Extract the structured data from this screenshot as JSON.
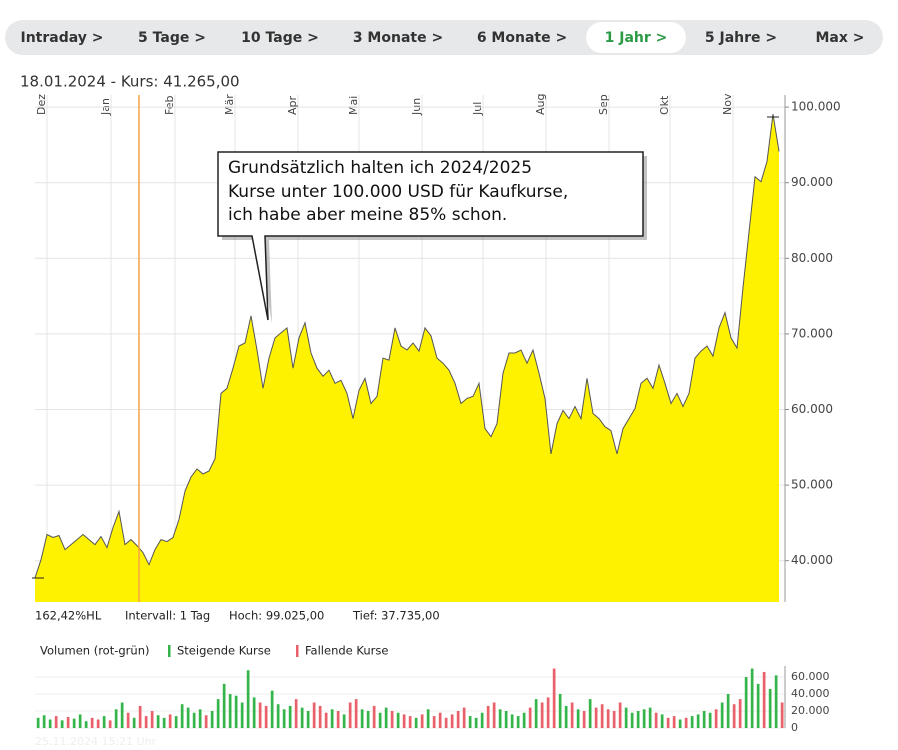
{
  "tabs": [
    "Intraday >",
    "5 Tage >",
    "10 Tage >",
    "3 Monate >",
    "6 Monate >",
    "1 Jahr >",
    "5 Jahre >",
    "Max >"
  ],
  "active_tab": 5,
  "header": "18.01.2024  -  Kurs: 41.265,00",
  "callout": [
    "Grundsätzlich halten ich 2024/2025",
    "Kurse unter 100.000 USD für Kaufkurse,",
    "ich habe aber meine 85% schon."
  ],
  "stats": [
    "162,42%HL",
    "Intervall: 1 Tag",
    "Hoch: 99.025,00",
    "Tief: 37.735,00"
  ],
  "timestamp": "25.11.2024 15:21 Uhr",
  "chart_data": [
    {
      "type": "area",
      "series": [
        {
          "color": "#fff200",
          "line_color": "#555555",
          "values": [
            37735,
            40130,
            43470,
            43070,
            43330,
            41470,
            42130,
            42800,
            43470,
            42800,
            42130,
            43200,
            41730,
            44400,
            46530,
            42130,
            42800,
            42000,
            41070,
            39470,
            41470,
            42800,
            42530,
            43070,
            45470,
            49200,
            51070,
            52130,
            51470,
            51870,
            53470,
            62130,
            62800,
            65470,
            68400,
            68800,
            72400,
            67870,
            62800,
            66800,
            69470,
            70130,
            70800,
            65470,
            69470,
            71470,
            67470,
            65470,
            64400,
            65200,
            63470,
            63870,
            62130,
            58800,
            62530,
            64130,
            60800,
            61730,
            66800,
            66530,
            70800,
            68400,
            67870,
            68800,
            67730,
            70800,
            69730,
            66800,
            66130,
            65200,
            63470,
            60800,
            61470,
            61730,
            63470,
            57470,
            56400,
            58130,
            64800,
            67470,
            67470,
            67870,
            66130,
            67870,
            64800,
            61470,
            54130,
            58130,
            59870,
            58800,
            60400,
            58800,
            64130,
            59470,
            58800,
            57730,
            57200,
            54130,
            57470,
            58800,
            60130,
            63470,
            64130,
            62800,
            65870,
            63470,
            60800,
            62130,
            60400,
            62130,
            66800,
            67730,
            68400,
            67070,
            70800,
            72800,
            69470,
            68130,
            76130,
            83470,
            90800,
            90130,
            92800,
            99070,
            94130
          ]
        }
      ],
      "xlim": [
        0,
        125
      ],
      "xticks": [
        {
          "value": 2,
          "label": "Dez"
        },
        {
          "value": 12.67,
          "label": "Jan"
        },
        {
          "value": 23.33,
          "label": "Feb"
        },
        {
          "value": 33.33,
          "label": "Mär"
        },
        {
          "value": 43.83,
          "label": "Apr"
        },
        {
          "value": 54,
          "label": "Mai"
        },
        {
          "value": 64.5,
          "label": "Jun"
        },
        {
          "value": 74.67,
          "label": "Jul"
        },
        {
          "value": 85.17,
          "label": "Aug"
        },
        {
          "value": 95.67,
          "label": "Sep"
        },
        {
          "value": 105.83,
          "label": "Okt"
        },
        {
          "value": 116.33,
          "label": "Nov"
        }
      ],
      "ylim": [
        34540,
        101600
      ],
      "yticks": [
        {
          "value": 40000,
          "label": "40.000"
        },
        {
          "value": 50000,
          "label": "50.000"
        },
        {
          "value": 60000,
          "label": "60.000"
        },
        {
          "value": 70000,
          "label": "70.000"
        },
        {
          "value": 80000,
          "label": "80.000"
        },
        {
          "value": 90000,
          "label": "90.000"
        },
        {
          "value": 100000,
          "label": "100.000"
        }
      ],
      "grid": true
    },
    {
      "type": "bar",
      "title": "Volumen (rot-grün)",
      "legend": [
        {
          "name": "Steigende Kurse",
          "color": "#34b44a"
        },
        {
          "name": "Fallende Kurse",
          "color": "#e8606a"
        }
      ],
      "values": [
        12000,
        15000,
        10000,
        14000,
        9000,
        13000,
        11000,
        16000,
        8000,
        12000,
        10000,
        14000,
        9000,
        22000,
        30000,
        18000,
        12000,
        26000,
        14000,
        20000,
        15000,
        12000,
        16000,
        14000,
        28000,
        24000,
        18000,
        22000,
        15000,
        20000,
        34000,
        52000,
        40000,
        38000,
        30000,
        68000,
        36000,
        30000,
        26000,
        44000,
        28000,
        22000,
        26000,
        34000,
        24000,
        20000,
        30000,
        26000,
        18000,
        22000,
        20000,
        16000,
        30000,
        34000,
        22000,
        20000,
        26000,
        18000,
        24000,
        20000,
        18000,
        16000,
        14000,
        12000,
        16000,
        22000,
        14000,
        18000,
        12000,
        16000,
        20000,
        24000,
        14000,
        12000,
        18000,
        26000,
        30000,
        22000,
        20000,
        16000,
        14000,
        18000,
        24000,
        34000,
        30000,
        36000,
        70000,
        40000,
        26000,
        30000,
        22000,
        20000,
        34000,
        24000,
        28000,
        22000,
        20000,
        30000,
        24000,
        18000,
        20000,
        22000,
        24000,
        18000,
        16000,
        12000,
        14000,
        10000,
        12000,
        14000,
        16000,
        20000,
        18000,
        22000,
        30000,
        40000,
        28000,
        34000,
        60000,
        70000,
        52000,
        66000,
        46000,
        62000,
        30000
      ],
      "ylim": [
        0,
        73000
      ],
      "yticks": [
        0,
        {
          "value": 20000,
          "label": "20.000"
        },
        {
          "value": 40000,
          "label": "40.000"
        },
        {
          "value": 60000,
          "label": "60.000"
        }
      ],
      "grid": true
    }
  ]
}
